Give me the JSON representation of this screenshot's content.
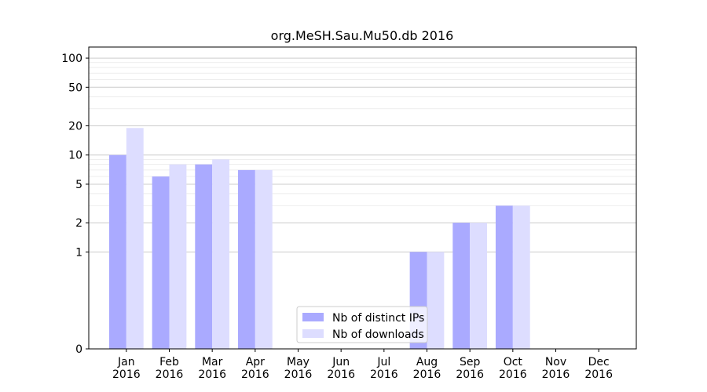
{
  "chart_data": {
    "type": "bar",
    "title": "org.MeSH.Sau.Mu50.db 2016",
    "xlabel": "",
    "ylabel": "",
    "categories": [
      [
        "Jan",
        "2016"
      ],
      [
        "Feb",
        "2016"
      ],
      [
        "Mar",
        "2016"
      ],
      [
        "Apr",
        "2016"
      ],
      [
        "May",
        "2016"
      ],
      [
        "Jun",
        "2016"
      ],
      [
        "Jul",
        "2016"
      ],
      [
        "Aug",
        "2016"
      ],
      [
        "Sep",
        "2016"
      ],
      [
        "Oct",
        "2016"
      ],
      [
        "Nov",
        "2016"
      ],
      [
        "Dec",
        "2016"
      ]
    ],
    "series": [
      {
        "name": "Nb of distinct IPs",
        "color": "#aaaaff",
        "values": [
          10,
          6,
          8,
          7,
          0,
          0,
          0,
          1,
          2,
          3,
          0,
          0
        ]
      },
      {
        "name": "Nb of downloads",
        "color": "#ddddff",
        "values": [
          19,
          8,
          9,
          7,
          0,
          0,
          0,
          1,
          2,
          3,
          0,
          0
        ]
      }
    ],
    "y_scale": "symlog",
    "ylim": [
      0,
      130
    ],
    "yticks": [
      0,
      1,
      2,
      5,
      10,
      20,
      50,
      100
    ],
    "grid": true,
    "legend_position": "lower center"
  }
}
